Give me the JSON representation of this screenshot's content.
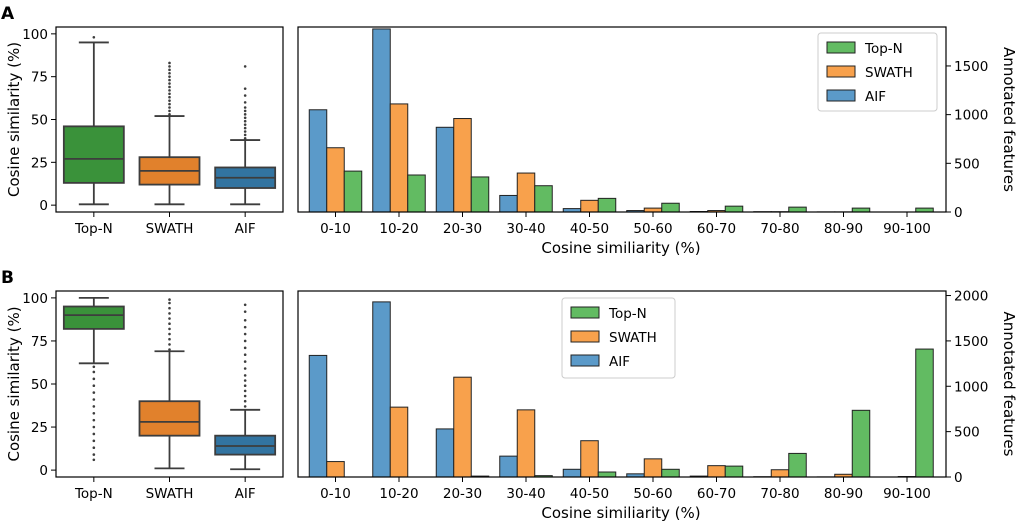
{
  "panels": [
    {
      "label": "A",
      "box": {
        "ylabel": "Cosine similarity (%)",
        "yticks": [
          0,
          25,
          50,
          75,
          100
        ],
        "ylim": [
          -4,
          104
        ],
        "categories": [
          "Top-N",
          "SWATH",
          "AIF"
        ],
        "colors": [
          "#3a923a",
          "#e1812c",
          "#3274a1"
        ],
        "stats": [
          {
            "whislo": 0.5,
            "q1": 13,
            "med": 27,
            "q3": 46,
            "whishi": 95,
            "outliers": [
              98
            ]
          },
          {
            "whislo": 0.5,
            "q1": 12,
            "med": 20,
            "q3": 28,
            "whishi": 52,
            "outliers": [
              53,
              55,
              57,
              59,
              61,
              63,
              65,
              67,
              69,
              71,
              73,
              75,
              77,
              79,
              81,
              83
            ]
          },
          {
            "whislo": 0.5,
            "q1": 10,
            "med": 16,
            "q3": 22,
            "whishi": 38,
            "outliers": [
              39,
              41,
              43,
              45,
              47,
              49,
              51,
              53,
              55,
              57,
              60,
              64,
              68,
              81
            ]
          }
        ]
      },
      "chart_data": {
        "type": "bar",
        "xlabel": "Cosine similiarity (%)",
        "ylabel": "Annotated features",
        "ylim": [
          0,
          1900
        ],
        "yticks": [
          0,
          500,
          1000,
          1500
        ],
        "legend_position": "top-right",
        "categories": [
          "0-10",
          "10-20",
          "20-30",
          "30-40",
          "40-50",
          "50-60",
          "60-70",
          "70-80",
          "80-90",
          "90-100"
        ],
        "series": [
          {
            "name": "AIF",
            "color": "#5b9ac9",
            "values": [
              1050,
              1880,
              870,
              170,
              35,
              15,
              5,
              3,
              1,
              0
            ]
          },
          {
            "name": "SWATH",
            "color": "#f8a14c",
            "values": [
              660,
              1110,
              960,
              400,
              120,
              40,
              15,
              3,
              1,
              0
            ]
          },
          {
            "name": "Top-N",
            "color": "#62bb62",
            "values": [
              420,
              380,
              360,
              270,
              140,
              90,
              60,
              50,
              40,
              40
            ]
          }
        ],
        "legend_order": [
          "Top-N",
          "SWATH",
          "AIF"
        ]
      }
    },
    {
      "label": "B",
      "box": {
        "ylabel": "Cosine similarity (%)",
        "yticks": [
          0,
          25,
          50,
          75,
          100
        ],
        "ylim": [
          -4,
          104
        ],
        "categories": [
          "Top-N",
          "SWATH",
          "AIF"
        ],
        "colors": [
          "#3a923a",
          "#e1812c",
          "#3274a1"
        ],
        "stats": [
          {
            "whislo": 62,
            "q1": 82,
            "med": 90,
            "q3": 95,
            "whishi": 100,
            "outliers": [
              6,
              9,
              13,
              17,
              21,
              25,
              29,
              33,
              37,
              41,
              45,
              49,
              53,
              57,
              60
            ]
          },
          {
            "whislo": 1,
            "q1": 20,
            "med": 28,
            "q3": 40,
            "whishi": 69,
            "outliers": [
              70,
              73,
              76,
              79,
              82,
              85,
              88,
              91,
              94,
              97,
              99
            ]
          },
          {
            "whislo": 0.5,
            "q1": 9,
            "med": 14,
            "q3": 20,
            "whishi": 35,
            "outliers": [
              37,
              40,
              43,
              46,
              49,
              52,
              55,
              59,
              63,
              67,
              71,
              75,
              79,
              83,
              87,
              92,
              96
            ]
          }
        ]
      },
      "chart_data": {
        "type": "bar",
        "xlabel": "Cosine similiarity (%)",
        "ylabel": "Annotated features",
        "ylim": [
          0,
          2050
        ],
        "yticks": [
          0,
          500,
          1000,
          1500,
          2000
        ],
        "legend_position": "top-center",
        "categories": [
          "0-10",
          "10-20",
          "20-30",
          "30-40",
          "40-50",
          "50-60",
          "60-70",
          "70-80",
          "80-90",
          "90-100"
        ],
        "series": [
          {
            "name": "AIF",
            "color": "#5b9ac9",
            "values": [
              1340,
              1930,
              530,
              230,
              85,
              35,
              10,
              3,
              1,
              0
            ]
          },
          {
            "name": "SWATH",
            "color": "#f8a14c",
            "values": [
              170,
              770,
              1100,
              740,
              400,
              200,
              125,
              80,
              30,
              5
            ]
          },
          {
            "name": "Top-N",
            "color": "#62bb62",
            "values": [
              0,
              0,
              10,
              15,
              55,
              85,
              120,
              260,
              735,
              1410
            ]
          }
        ],
        "legend_order": [
          "Top-N",
          "SWATH",
          "AIF"
        ]
      }
    }
  ]
}
